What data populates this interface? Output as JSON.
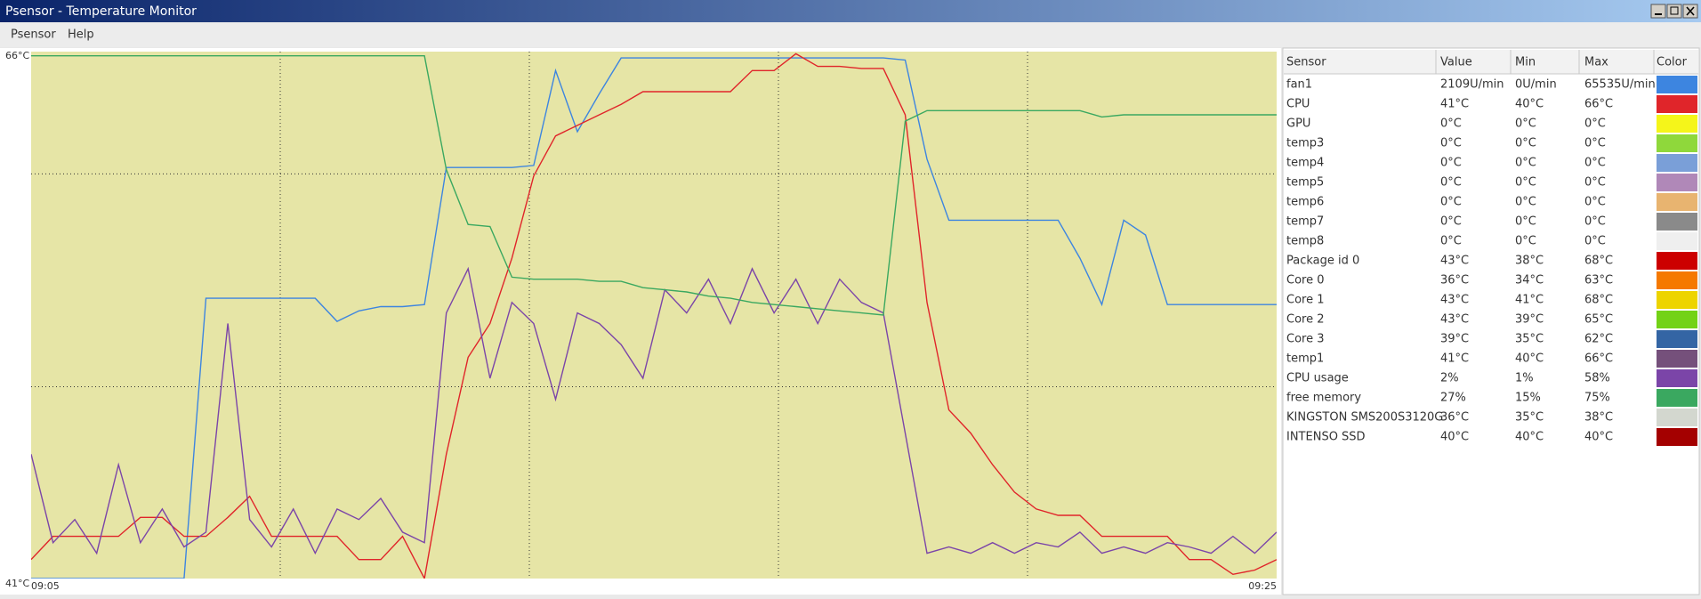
{
  "window": {
    "title": "Psensor - Temperature Monitor",
    "menu": [
      "Psensor",
      "Help"
    ]
  },
  "chart_data": {
    "type": "line",
    "ylim": [
      41,
      66
    ],
    "yticks": [
      {
        "value": 66,
        "label": "66°C"
      },
      {
        "value": 41,
        "label": "41°C"
      }
    ],
    "xlim": [
      "09:05",
      "09:25"
    ],
    "grid": true,
    "ygrid": [
      60.2,
      50.1
    ],
    "background": "#e6e5a6",
    "columns": [
      "Sensor",
      "Value",
      "Min",
      "Max",
      "Color"
    ],
    "series": [
      {
        "name": "fan1",
        "current": "2109U/min",
        "min": "0U/min",
        "max": "65535U/min",
        "color": "#3d85e0",
        "values": [
          41.0,
          41.0,
          41.0,
          41.0,
          41.0,
          41.0,
          41.0,
          41.0,
          54.3,
          54.3,
          54.3,
          54.3,
          54.3,
          54.3,
          53.2,
          53.7,
          53.9,
          53.9,
          54.0,
          60.5,
          60.5,
          60.5,
          60.5,
          60.6,
          65.1,
          62.2,
          64.0,
          65.7,
          65.7,
          65.7,
          65.7,
          65.7,
          65.7,
          65.7,
          65.7,
          65.7,
          65.7,
          65.7,
          65.7,
          65.7,
          65.6,
          60.9,
          58.0,
          58.0,
          58.0,
          58.0,
          58.0,
          58.0,
          56.2,
          54.0,
          58.0,
          57.3,
          54.0,
          54.0,
          54.0,
          54.0,
          54.0,
          54.0
        ]
      },
      {
        "name": "CPU",
        "current": "41°C",
        "min": "40°C",
        "max": "66°C",
        "color": "#e0252a",
        "values": [
          41.9,
          43.0,
          43.0,
          43.0,
          43.0,
          43.9,
          43.9,
          43.0,
          43.0,
          43.9,
          44.9,
          43.0,
          43.0,
          43.0,
          43.0,
          41.9,
          41.9,
          43.0,
          41.0,
          46.9,
          51.5,
          53.1,
          56.2,
          60.1,
          62.0,
          62.5,
          63.0,
          63.5,
          64.1,
          64.1,
          64.1,
          64.1,
          64.1,
          65.1,
          65.1,
          65.9,
          65.3,
          65.3,
          65.2,
          65.2,
          63.0,
          54.1,
          49.0,
          47.9,
          46.4,
          45.1,
          44.3,
          44.0,
          44.0,
          43.0,
          43.0,
          43.0,
          43.0,
          41.9,
          41.9,
          41.2,
          41.4,
          41.9
        ]
      },
      {
        "name": "GPU",
        "current": "0°C",
        "min": "0°C",
        "max": "0°C",
        "color": "#f5f51a"
      },
      {
        "name": "temp3",
        "current": "0°C",
        "min": "0°C",
        "max": "0°C",
        "color": "#8fd83b"
      },
      {
        "name": "temp4",
        "current": "0°C",
        "min": "0°C",
        "max": "0°C",
        "color": "#7a9fd8"
      },
      {
        "name": "temp5",
        "current": "0°C",
        "min": "0°C",
        "max": "0°C",
        "color": "#b088b8"
      },
      {
        "name": "temp6",
        "current": "0°C",
        "min": "0°C",
        "max": "0°C",
        "color": "#e8b470"
      },
      {
        "name": "temp7",
        "current": "0°C",
        "min": "0°C",
        "max": "0°C",
        "color": "#8a8a8a"
      },
      {
        "name": "temp8",
        "current": "0°C",
        "min": "0°C",
        "max": "0°C",
        "color": "#efefef"
      },
      {
        "name": "Package id 0",
        "current": "43°C",
        "min": "38°C",
        "max": "68°C",
        "color": "#cc0000"
      },
      {
        "name": "Core 0",
        "current": "36°C",
        "min": "34°C",
        "max": "63°C",
        "color": "#f57900"
      },
      {
        "name": "Core 1",
        "current": "43°C",
        "min": "41°C",
        "max": "68°C",
        "color": "#edd400"
      },
      {
        "name": "Core 2",
        "current": "43°C",
        "min": "39°C",
        "max": "65°C",
        "color": "#73d216"
      },
      {
        "name": "Core 3",
        "current": "39°C",
        "min": "35°C",
        "max": "62°C",
        "color": "#3465a4"
      },
      {
        "name": "temp1",
        "current": "41°C",
        "min": "40°C",
        "max": "66°C",
        "color": "#75507b"
      },
      {
        "name": "CPU usage",
        "current": "2%",
        "min": "1%",
        "max": "58%",
        "color": "#7b45a8",
        "values": [
          46.9,
          42.7,
          43.8,
          42.2,
          46.4,
          42.7,
          44.3,
          42.5,
          43.2,
          53.1,
          43.8,
          42.5,
          44.3,
          42.2,
          44.3,
          43.8,
          44.8,
          43.2,
          42.7,
          53.6,
          55.7,
          50.5,
          54.1,
          53.1,
          49.5,
          53.6,
          53.1,
          52.1,
          50.5,
          54.7,
          53.6,
          55.2,
          53.1,
          55.7,
          53.6,
          55.2,
          53.1,
          55.2,
          54.1,
          53.6,
          47.9,
          42.2,
          42.5,
          42.2,
          42.7,
          42.2,
          42.7,
          42.5,
          43.2,
          42.2,
          42.5,
          42.2,
          42.7,
          42.5,
          42.2,
          43.0,
          42.2,
          43.2
        ]
      },
      {
        "name": "free memory",
        "current": "27%",
        "min": "15%",
        "max": "75%",
        "color": "#3aa860",
        "values": [
          65.8,
          65.8,
          65.8,
          65.8,
          65.8,
          65.8,
          65.8,
          65.8,
          65.8,
          65.8,
          65.8,
          65.8,
          65.8,
          65.8,
          65.8,
          65.8,
          65.8,
          65.8,
          65.8,
          60.4,
          57.8,
          57.7,
          55.3,
          55.2,
          55.2,
          55.2,
          55.1,
          55.1,
          54.8,
          54.7,
          54.6,
          54.4,
          54.3,
          54.1,
          54.0,
          53.9,
          53.8,
          53.7,
          53.6,
          53.5,
          62.7,
          63.2,
          63.2,
          63.2,
          63.2,
          63.2,
          63.2,
          63.2,
          63.2,
          62.9,
          63.0,
          63.0,
          63.0,
          63.0,
          63.0,
          63.0,
          63.0,
          63.0
        ]
      },
      {
        "name": "KINGSTON SMS200S3120G",
        "current": "36°C",
        "min": "35°C",
        "max": "38°C",
        "color": "#d3d7cf"
      },
      {
        "name": "INTENSO SSD",
        "current": "40°C",
        "min": "40°C",
        "max": "40°C",
        "color": "#a40000"
      }
    ]
  }
}
